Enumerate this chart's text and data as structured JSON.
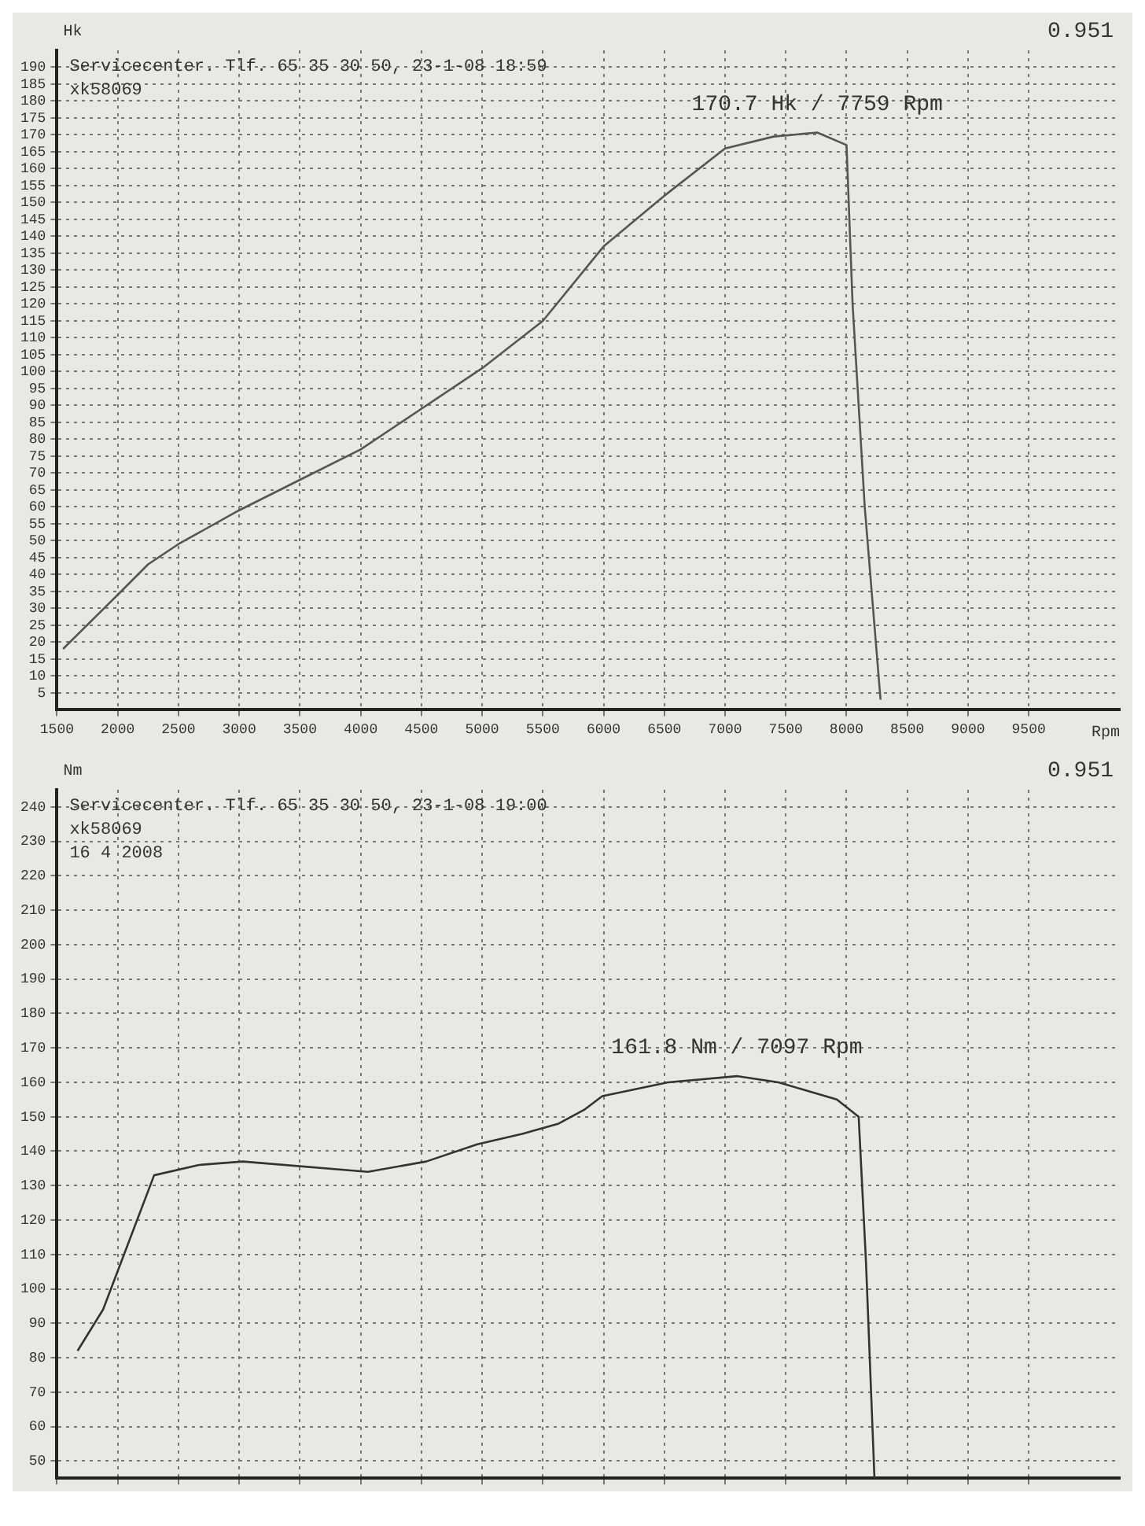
{
  "chart_data": [
    {
      "type": "line",
      "ylabel": "Hk",
      "xlabel": "Rpm",
      "xlim": [
        1500,
        10250
      ],
      "xticks": [
        1500,
        2000,
        2500,
        3000,
        3500,
        4000,
        4500,
        5000,
        5500,
        6000,
        6500,
        7000,
        7500,
        8000,
        8500,
        9000,
        9500
      ],
      "ylim": [
        0,
        195
      ],
      "yticks": [
        5,
        10,
        15,
        20,
        25,
        30,
        35,
        40,
        45,
        50,
        55,
        60,
        65,
        70,
        75,
        80,
        85,
        90,
        95,
        100,
        105,
        110,
        115,
        120,
        125,
        130,
        135,
        140,
        145,
        150,
        155,
        160,
        165,
        170,
        175,
        180,
        185,
        190
      ],
      "grid": true,
      "legend": false,
      "marker": "none",
      "line_style": "solid",
      "series": [
        {
          "color": "#555555",
          "x": [
            1550,
            2000,
            2250,
            2500,
            3000,
            3500,
            4000,
            4500,
            5000,
            5500,
            6000,
            6500,
            7000,
            7400,
            7759,
            8000,
            8050,
            8150,
            8280
          ],
          "values": [
            18,
            34,
            43,
            49,
            59,
            68,
            77,
            89,
            101,
            115,
            137,
            152,
            166,
            169.5,
            170.7,
            167,
            120,
            60,
            3
          ]
        }
      ],
      "annotations": [
        "0.951",
        "Servicecenter. Tlf. 65 35 30 50, 23-1-08 18:59",
        "xk58069",
        {
          "text": "170.7 Hk / 7759 Rpm",
          "x": 7759,
          "y": 170.7
        }
      ]
    },
    {
      "type": "line",
      "ylabel": "Nm",
      "xlim": [
        1500,
        10250
      ],
      "xticks": [
        {
          "value": 1500,
          "label": null
        },
        {
          "value": 2000,
          "label": null
        },
        {
          "value": 2500,
          "label": null
        },
        {
          "value": 3000,
          "label": null
        },
        {
          "value": 3500,
          "label": null
        },
        {
          "value": 4000,
          "label": null
        },
        {
          "value": 4500,
          "label": null
        },
        {
          "value": 5000,
          "label": null
        },
        {
          "value": 5500,
          "label": null
        },
        {
          "value": 6000,
          "label": null
        },
        {
          "value": 6500,
          "label": null
        },
        {
          "value": 7000,
          "label": null
        },
        {
          "value": 7500,
          "label": null
        },
        {
          "value": 8000,
          "label": null
        },
        {
          "value": 8500,
          "label": null
        },
        {
          "value": 9000,
          "label": null
        },
        {
          "value": 9500,
          "label": null
        }
      ],
      "ylim": [
        45,
        245
      ],
      "yticks": [
        50,
        60,
        70,
        80,
        90,
        100,
        110,
        120,
        130,
        140,
        150,
        160,
        170,
        180,
        190,
        200,
        210,
        220,
        230,
        240
      ],
      "tick_labels": "y",
      "grid": true,
      "legend": false,
      "marker": "none",
      "line_style": "solid",
      "series": [
        {
          "color": "#333333",
          "x": [
            1670,
            1880,
            2300,
            2670,
            3030,
            4060,
            4540,
            4960,
            5330,
            5630,
            5840,
            5990,
            6530,
            7097,
            7440,
            7920,
            8100,
            8160,
            8230
          ],
          "values": [
            82,
            94,
            133,
            136,
            137,
            134,
            137,
            142,
            145,
            148,
            152,
            156,
            160,
            161.8,
            160,
            155,
            150,
            108,
            45
          ]
        }
      ],
      "annotations": [
        "0.951",
        "Servicecenter. Tlf. 65 35 30 50, 23-1-08 19:00",
        "xk58069",
        "16 4 2008",
        {
          "text": "161.8 Nm / 7097 Rpm",
          "x": 7097,
          "y": 161.8
        }
      ]
    }
  ]
}
